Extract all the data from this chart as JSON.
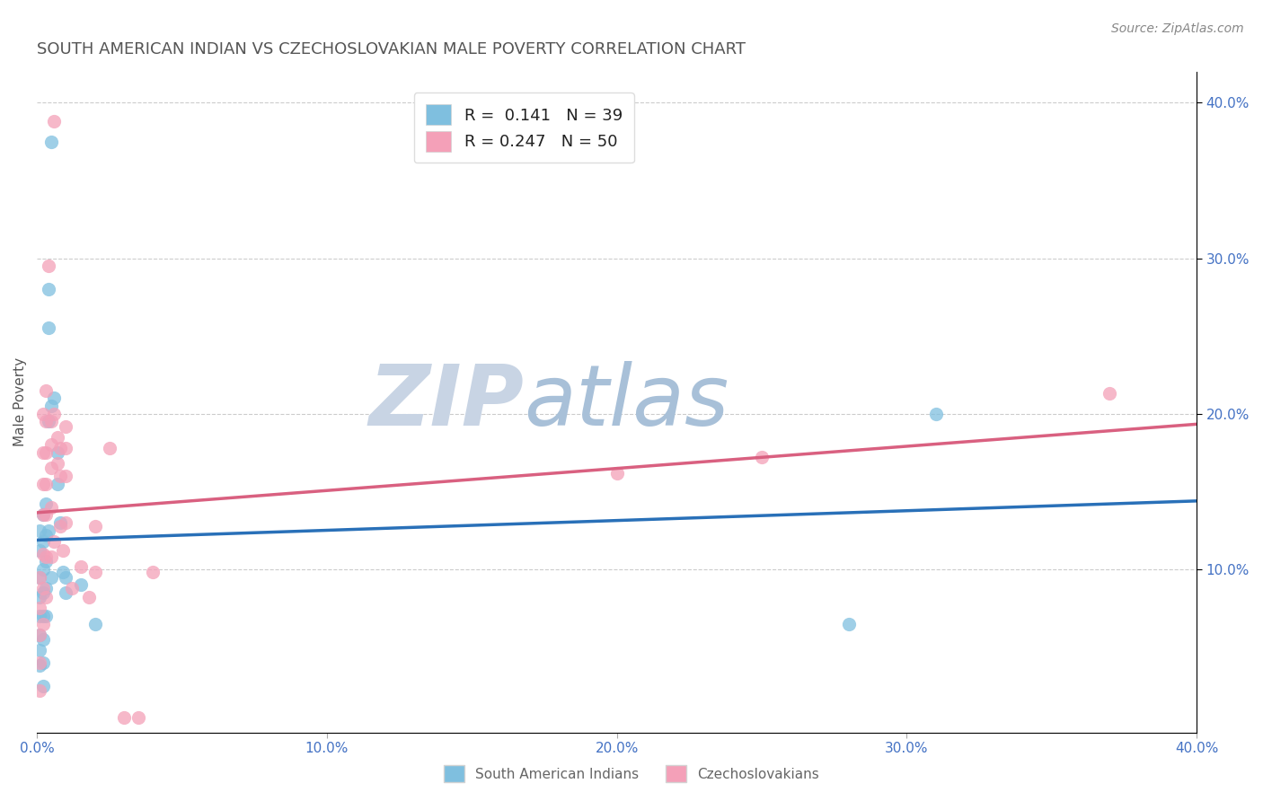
{
  "title": "SOUTH AMERICAN INDIAN VS CZECHOSLOVAKIAN MALE POVERTY CORRELATION CHART",
  "source": "Source: ZipAtlas.com",
  "ylabel": "Male Poverty",
  "xlim": [
    0.0,
    0.4
  ],
  "ylim": [
    -0.005,
    0.42
  ],
  "xticks": [
    0.0,
    0.1,
    0.2,
    0.3,
    0.4
  ],
  "xtick_labels": [
    "0.0%",
    "10.0%",
    "20.0%",
    "30.0%",
    "40.0%"
  ],
  "yticks_right": [
    0.1,
    0.2,
    0.3,
    0.4
  ],
  "ytick_right_labels": [
    "10.0%",
    "20.0%",
    "30.0%",
    "40.0%"
  ],
  "color_blue": "#7fbfdf",
  "color_pink": "#f4a0b8",
  "color_blue_line": "#2970b8",
  "color_pink_line": "#d96080",
  "legend_label1": "South American Indians",
  "legend_label2": "Czechoslovakians",
  "watermark_zip": "ZIP",
  "watermark_atlas": "atlas",
  "watermark_color_zip": "#c8d4e4",
  "watermark_color_atlas": "#a8c0d8",
  "title_color": "#555555",
  "source_color": "#888888",
  "blue_scatter": [
    [
      0.001,
      0.125
    ],
    [
      0.001,
      0.112
    ],
    [
      0.001,
      0.095
    ],
    [
      0.001,
      0.082
    ],
    [
      0.001,
      0.07
    ],
    [
      0.001,
      0.058
    ],
    [
      0.001,
      0.048
    ],
    [
      0.001,
      0.038
    ],
    [
      0.002,
      0.135
    ],
    [
      0.002,
      0.118
    ],
    [
      0.002,
      0.1
    ],
    [
      0.002,
      0.085
    ],
    [
      0.002,
      0.07
    ],
    [
      0.002,
      0.055
    ],
    [
      0.002,
      0.04
    ],
    [
      0.002,
      0.025
    ],
    [
      0.003,
      0.142
    ],
    [
      0.003,
      0.122
    ],
    [
      0.003,
      0.105
    ],
    [
      0.003,
      0.088
    ],
    [
      0.003,
      0.07
    ],
    [
      0.004,
      0.28
    ],
    [
      0.004,
      0.255
    ],
    [
      0.004,
      0.195
    ],
    [
      0.004,
      0.125
    ],
    [
      0.005,
      0.375
    ],
    [
      0.005,
      0.205
    ],
    [
      0.005,
      0.095
    ],
    [
      0.006,
      0.21
    ],
    [
      0.007,
      0.175
    ],
    [
      0.007,
      0.155
    ],
    [
      0.008,
      0.13
    ],
    [
      0.009,
      0.098
    ],
    [
      0.01,
      0.095
    ],
    [
      0.01,
      0.085
    ],
    [
      0.015,
      0.09
    ],
    [
      0.02,
      0.065
    ],
    [
      0.28,
      0.065
    ],
    [
      0.31,
      0.2
    ]
  ],
  "pink_scatter": [
    [
      0.001,
      0.095
    ],
    [
      0.001,
      0.075
    ],
    [
      0.001,
      0.058
    ],
    [
      0.001,
      0.04
    ],
    [
      0.001,
      0.022
    ],
    [
      0.002,
      0.2
    ],
    [
      0.002,
      0.175
    ],
    [
      0.002,
      0.155
    ],
    [
      0.002,
      0.135
    ],
    [
      0.002,
      0.11
    ],
    [
      0.002,
      0.088
    ],
    [
      0.002,
      0.065
    ],
    [
      0.003,
      0.215
    ],
    [
      0.003,
      0.195
    ],
    [
      0.003,
      0.175
    ],
    [
      0.003,
      0.155
    ],
    [
      0.003,
      0.135
    ],
    [
      0.003,
      0.108
    ],
    [
      0.003,
      0.082
    ],
    [
      0.004,
      0.295
    ],
    [
      0.005,
      0.195
    ],
    [
      0.005,
      0.18
    ],
    [
      0.005,
      0.165
    ],
    [
      0.005,
      0.14
    ],
    [
      0.005,
      0.108
    ],
    [
      0.006,
      0.2
    ],
    [
      0.006,
      0.388
    ],
    [
      0.006,
      0.118
    ],
    [
      0.007,
      0.185
    ],
    [
      0.007,
      0.168
    ],
    [
      0.008,
      0.178
    ],
    [
      0.008,
      0.16
    ],
    [
      0.008,
      0.128
    ],
    [
      0.009,
      0.112
    ],
    [
      0.01,
      0.192
    ],
    [
      0.01,
      0.178
    ],
    [
      0.01,
      0.16
    ],
    [
      0.01,
      0.13
    ],
    [
      0.012,
      0.088
    ],
    [
      0.015,
      0.102
    ],
    [
      0.018,
      0.082
    ],
    [
      0.02,
      0.128
    ],
    [
      0.02,
      0.098
    ],
    [
      0.025,
      0.178
    ],
    [
      0.03,
      0.005
    ],
    [
      0.035,
      0.005
    ],
    [
      0.04,
      0.098
    ],
    [
      0.2,
      0.162
    ],
    [
      0.25,
      0.172
    ],
    [
      0.37,
      0.213
    ]
  ],
  "background_color": "#ffffff",
  "grid_color": "#cccccc",
  "tick_label_color": "#4472c4"
}
